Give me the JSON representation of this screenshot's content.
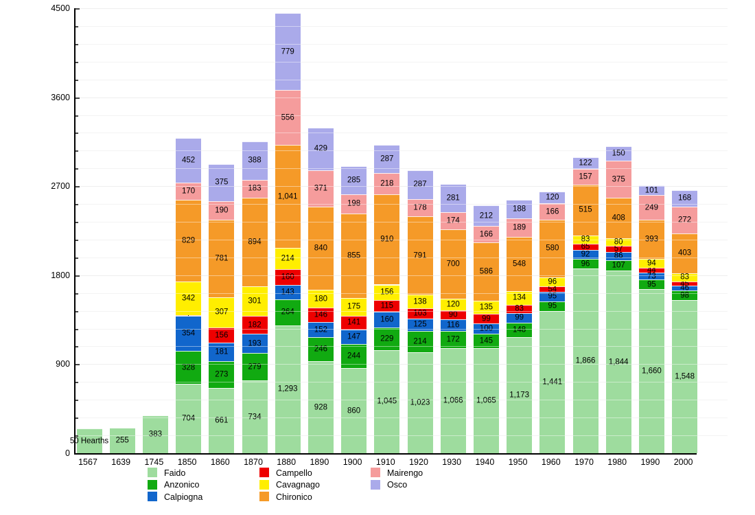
{
  "chart_data": {
    "type": "bar",
    "stacked": true,
    "title": "",
    "xlabel": "",
    "ylabel": "",
    "ylim": [
      0,
      4500
    ],
    "y_major_ticks": [
      0,
      900,
      1800,
      2700,
      3600,
      4500
    ],
    "y_minor_step": 180,
    "grid": true,
    "legend_position": "bottom",
    "categories": [
      "1567",
      "1639",
      "1745",
      "1850",
      "1860",
      "1870",
      "1880",
      "1890",
      "1900",
      "1910",
      "1920",
      "1930",
      "1940",
      "1950",
      "1960",
      "1970",
      "1980",
      "1990",
      "2000"
    ],
    "series": [
      {
        "name": "Faido",
        "color": "#9edc9e",
        "values": [
          250,
          255,
          383,
          704,
          661,
          734,
          1293,
          928,
          860,
          1045,
          1023,
          1066,
          1065,
          1173,
          1441,
          1866,
          1844,
          1660,
          1548
        ],
        "label_overrides": {
          "0": "50 Hearths"
        }
      },
      {
        "name": "Anzonico",
        "color": "#11aa11",
        "values": [
          null,
          null,
          null,
          328,
          273,
          279,
          264,
          246,
          244,
          229,
          214,
          172,
          145,
          148,
          95,
          96,
          107,
          95,
          98
        ],
        "label_overrides": {}
      },
      {
        "name": "Calpiogna",
        "color": "#1166cc",
        "values": [
          null,
          null,
          null,
          354,
          181,
          193,
          143,
          152,
          147,
          160,
          125,
          116,
          100,
          99,
          95,
          92,
          86,
          73,
          46
        ],
        "label_overrides": {}
      },
      {
        "name": "Campello",
        "color": "#ee0000",
        "values": [
          null,
          null,
          null,
          8,
          156,
          182,
          160,
          146,
          141,
          115,
          103,
          90,
          99,
          83,
          54,
          65,
          57,
          44,
          45
        ],
        "label_overrides": {
          "3": "·"
        }
      },
      {
        "name": "Cavagnago",
        "color": "#ffee00",
        "values": [
          null,
          null,
          null,
          342,
          307,
          301,
          214,
          180,
          175,
          156,
          138,
          120,
          135,
          134,
          96,
          83,
          80,
          94,
          83
        ],
        "label_overrides": {}
      },
      {
        "name": "Chironico",
        "color": "#f59a28",
        "values": [
          null,
          null,
          null,
          829,
          781,
          894,
          1041,
          840,
          855,
          910,
          791,
          700,
          586,
          548,
          580,
          515,
          408,
          393,
          403
        ],
        "label_overrides": {}
      },
      {
        "name": "Mairengo",
        "color": "#f59c9c",
        "values": [
          null,
          null,
          null,
          170,
          190,
          183,
          556,
          371,
          198,
          218,
          178,
          174,
          166,
          189,
          166,
          157,
          375,
          249,
          272
        ],
        "label_overrides": {}
      },
      {
        "name": "Osco",
        "color": "#aaaaea",
        "values": [
          null,
          null,
          null,
          452,
          375,
          388,
          779,
          429,
          285,
          287,
          287,
          281,
          212,
          188,
          120,
          122,
          150,
          101,
          168
        ],
        "label_overrides": {}
      }
    ]
  },
  "legend": {
    "columns": [
      {
        "items": [
          {
            "label": "Faido",
            "color": "#9edc9e"
          },
          {
            "label": "Anzonico",
            "color": "#11aa11"
          },
          {
            "label": "Calpiogna",
            "color": "#1166cc"
          }
        ]
      },
      {
        "items": [
          {
            "label": "Campello",
            "color": "#ee0000"
          },
          {
            "label": "Cavagnago",
            "color": "#ffee00"
          },
          {
            "label": "Chironico",
            "color": "#f59a28"
          }
        ]
      },
      {
        "items": [
          {
            "label": "Mairengo",
            "color": "#f59c9c"
          },
          {
            "label": "Osco",
            "color": "#aaaaea"
          }
        ]
      }
    ]
  }
}
